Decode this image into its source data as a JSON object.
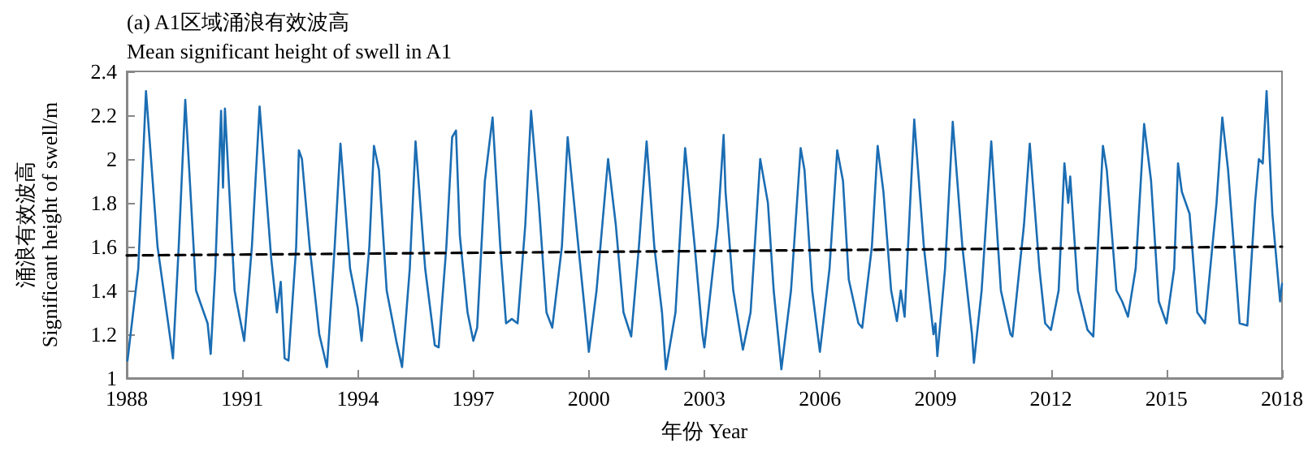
{
  "chart_data": {
    "type": "line",
    "title": "(a) A1区域涌浪有效波高",
    "subtitle": "Mean significant height of swell in A1",
    "xlabel": "年份 Year",
    "ylabel": "涌浪有效波高\nSignificant height of swell/m",
    "xlim": [
      1988,
      2018
    ],
    "xticks": [
      1988,
      1991,
      1994,
      1997,
      2000,
      2003,
      2006,
      2009,
      2012,
      2015,
      2018
    ],
    "ylim": [
      1,
      2.4
    ],
    "yticks": [
      1,
      1.2,
      1.4,
      1.6,
      1.8,
      2,
      2.2,
      2.4
    ],
    "grid": false,
    "marker": "none",
    "series": [
      {
        "color": "#1b6db3",
        "line_style": "solid",
        "x": [
          1988.02,
          1988.3,
          1988.5,
          1988.8,
          1989.1,
          1989.2,
          1989.35,
          1989.52,
          1989.8,
          1990.1,
          1990.18,
          1990.3,
          1990.45,
          1990.5,
          1990.55,
          1990.8,
          1991.05,
          1991.25,
          1991.45,
          1991.75,
          1991.9,
          1992.0,
          1992.1,
          1992.2,
          1992.4,
          1992.47,
          1992.55,
          1992.75,
          1993.0,
          1993.2,
          1993.4,
          1993.55,
          1993.8,
          1994.0,
          1994.1,
          1994.3,
          1994.42,
          1994.55,
          1994.75,
          1995.0,
          1995.15,
          1995.35,
          1995.5,
          1995.75,
          1996.0,
          1996.1,
          1996.3,
          1996.45,
          1996.55,
          1996.65,
          1996.85,
          1997.0,
          1997.1,
          1997.3,
          1997.5,
          1997.7,
          1997.85,
          1998.0,
          1998.15,
          1998.35,
          1998.5,
          1998.7,
          1998.9,
          1999.05,
          1999.3,
          1999.45,
          1999.7,
          1999.9,
          2000.0,
          2000.2,
          2000.5,
          2000.7,
          2000.9,
          2001.1,
          2001.3,
          2001.5,
          2001.7,
          2001.9,
          2002.0,
          2002.25,
          2002.5,
          2002.75,
          2002.95,
          2003.0,
          2003.35,
          2003.5,
          2003.55,
          2003.75,
          2004.0,
          2004.2,
          2004.45,
          2004.65,
          2004.8,
          2005.0,
          2005.25,
          2005.5,
          2005.6,
          2005.8,
          2006.0,
          2006.25,
          2006.45,
          2006.6,
          2006.75,
          2007.0,
          2007.1,
          2007.35,
          2007.5,
          2007.65,
          2007.85,
          2008.0,
          2008.1,
          2008.2,
          2008.45,
          2008.7,
          2008.95,
          2009.0,
          2009.05,
          2009.25,
          2009.45,
          2009.7,
          2009.95,
          2010.0,
          2010.2,
          2010.45,
          2010.7,
          2010.95,
          2011.0,
          2011.3,
          2011.45,
          2011.7,
          2011.85,
          2012.0,
          2012.2,
          2012.35,
          2012.45,
          2012.5,
          2012.7,
          2012.95,
          2013.1,
          2013.35,
          2013.45,
          2013.7,
          2013.85,
          2014.0,
          2014.2,
          2014.42,
          2014.6,
          2014.8,
          2015.0,
          2015.2,
          2015.3,
          2015.4,
          2015.6,
          2015.8,
          2016.0,
          2016.3,
          2016.45,
          2016.6,
          2016.75,
          2016.9,
          2017.1,
          2017.3,
          2017.4,
          2017.5,
          2017.6,
          2017.75,
          2017.95,
          2018.0
        ],
        "values": [
          1.08,
          1.5,
          2.31,
          1.6,
          1.22,
          1.09,
          1.6,
          2.27,
          1.4,
          1.25,
          1.11,
          1.5,
          2.22,
          1.87,
          2.23,
          1.4,
          1.17,
          1.6,
          2.24,
          1.55,
          1.3,
          1.44,
          1.09,
          1.08,
          1.6,
          2.04,
          2.0,
          1.6,
          1.2,
          1.05,
          1.6,
          2.07,
          1.5,
          1.32,
          1.17,
          1.6,
          2.06,
          1.95,
          1.4,
          1.17,
          1.05,
          1.5,
          2.08,
          1.5,
          1.15,
          1.14,
          1.6,
          2.1,
          2.13,
          1.65,
          1.3,
          1.17,
          1.23,
          1.9,
          2.19,
          1.6,
          1.25,
          1.27,
          1.25,
          1.7,
          2.22,
          1.8,
          1.3,
          1.23,
          1.6,
          2.1,
          1.65,
          1.3,
          1.12,
          1.4,
          2.0,
          1.7,
          1.3,
          1.19,
          1.6,
          2.08,
          1.6,
          1.3,
          1.04,
          1.3,
          2.05,
          1.6,
          1.2,
          1.14,
          1.7,
          2.11,
          1.85,
          1.4,
          1.13,
          1.3,
          2.0,
          1.8,
          1.4,
          1.04,
          1.4,
          2.05,
          1.95,
          1.4,
          1.12,
          1.5,
          2.04,
          1.9,
          1.45,
          1.25,
          1.23,
          1.6,
          2.06,
          1.85,
          1.4,
          1.26,
          1.4,
          1.28,
          2.18,
          1.6,
          1.2,
          1.25,
          1.1,
          1.5,
          2.17,
          1.6,
          1.2,
          1.07,
          1.4,
          2.08,
          1.4,
          1.2,
          1.19,
          1.7,
          2.07,
          1.5,
          1.25,
          1.22,
          1.4,
          1.98,
          1.8,
          1.92,
          1.4,
          1.22,
          1.19,
          2.06,
          1.95,
          1.4,
          1.35,
          1.28,
          1.5,
          2.16,
          1.9,
          1.35,
          1.25,
          1.5,
          1.98,
          1.85,
          1.75,
          1.3,
          1.25,
          1.8,
          2.19,
          1.95,
          1.6,
          1.25,
          1.24,
          1.8,
          2.0,
          1.98,
          2.31,
          1.75,
          1.35,
          1.43
        ]
      },
      {
        "color": "#000000",
        "line_style": "dashed",
        "x": [
          1988,
          2018
        ],
        "values": [
          1.56,
          1.6
        ]
      }
    ]
  }
}
